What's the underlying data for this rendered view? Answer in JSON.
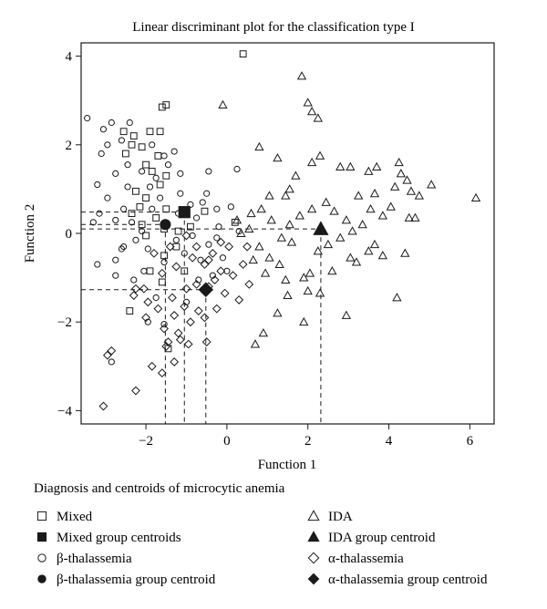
{
  "chart_data": {
    "type": "scatter",
    "title": "Linear discriminant plot for the classification type I",
    "xlabel": "Function 1",
    "ylabel": "Function 2",
    "xlim": [
      -3.6,
      6.6
    ],
    "ylim": [
      -4.3,
      4.3
    ],
    "xticks": [
      -2,
      0,
      2,
      4,
      6
    ],
    "yticks": [
      -4,
      -2,
      0,
      2,
      4
    ],
    "xtick_labels": [
      "−2",
      "0",
      "2",
      "4",
      "6"
    ],
    "ytick_labels": [
      "−4",
      "−2",
      "0",
      "2",
      "4"
    ],
    "grid": false,
    "legend": {
      "title": "Diagnosis and centroids of microcytic anemia",
      "placement": "below",
      "entries": [
        {
          "marker": "square-open",
          "label": "Mixed"
        },
        {
          "marker": "triangle-open",
          "label": "IDA"
        },
        {
          "marker": "square-filled",
          "label": "Mixed group centroids"
        },
        {
          "marker": "triangle-filled",
          "label": "IDA group centroid"
        },
        {
          "marker": "circle-open",
          "label": "β-thalassemia"
        },
        {
          "marker": "diamond-open",
          "label": "α-thalassemia"
        },
        {
          "marker": "circle-filled",
          "label": "β-thalassemia group centroid"
        },
        {
          "marker": "diamond-filled",
          "label": "α-thalassemia group centroid"
        }
      ]
    },
    "series": [
      {
        "name": "Mixed",
        "marker": "square-open",
        "points": [
          [
            0.4,
            4.05
          ],
          [
            -1.9,
            2.3
          ],
          [
            -1.65,
            2.3
          ],
          [
            -2.3,
            2.2
          ],
          [
            -2.35,
            2.0
          ],
          [
            -2.1,
            1.95
          ],
          [
            -2.5,
            1.8
          ],
          [
            -1.7,
            1.75
          ],
          [
            -2.0,
            1.55
          ],
          [
            -1.85,
            1.4
          ],
          [
            -1.5,
            1.3
          ],
          [
            -1.65,
            1.1
          ],
          [
            -2.25,
            0.95
          ],
          [
            -2.0,
            0.8
          ],
          [
            -2.15,
            0.6
          ],
          [
            -1.5,
            0.55
          ],
          [
            -2.35,
            0.45
          ],
          [
            -1.75,
            0.35
          ],
          [
            -2.1,
            0.2
          ],
          [
            -1.55,
            0.1
          ],
          [
            -1.2,
            0.05
          ],
          [
            -2.0,
            -0.05
          ],
          [
            0.2,
            0.25
          ],
          [
            -1.25,
            -0.3
          ],
          [
            -1.55,
            -0.5
          ],
          [
            -2.4,
            -1.75
          ],
          [
            -1.9,
            -0.85
          ],
          [
            -1.05,
            -0.85
          ],
          [
            -1.6,
            -1.1
          ],
          [
            -1.45,
            -2.6
          ],
          [
            -1.6,
            2.85
          ],
          [
            -1.5,
            2.9
          ],
          [
            -0.55,
            0.5
          ],
          [
            -0.9,
            0.15
          ],
          [
            -2.55,
            2.3
          ]
        ]
      },
      {
        "name": "IDA",
        "marker": "triangle-open",
        "points": [
          [
            1.85,
            3.55
          ],
          [
            2.0,
            2.95
          ],
          [
            2.1,
            2.75
          ],
          [
            2.25,
            2.6
          ],
          [
            -0.1,
            2.9
          ],
          [
            0.8,
            1.95
          ],
          [
            1.7,
            1.3
          ],
          [
            2.1,
            1.6
          ],
          [
            2.3,
            1.75
          ],
          [
            1.25,
            1.7
          ],
          [
            2.8,
            1.5
          ],
          [
            3.05,
            1.5
          ],
          [
            3.5,
            1.4
          ],
          [
            3.7,
            1.5
          ],
          [
            4.25,
            1.6
          ],
          [
            4.45,
            1.2
          ],
          [
            4.3,
            1.35
          ],
          [
            5.05,
            1.1
          ],
          [
            4.75,
            0.85
          ],
          [
            4.55,
            0.95
          ],
          [
            4.15,
            1.05
          ],
          [
            3.65,
            0.9
          ],
          [
            3.25,
            0.85
          ],
          [
            6.15,
            0.8
          ],
          [
            4.05,
            0.6
          ],
          [
            3.85,
            0.4
          ],
          [
            4.5,
            0.35
          ],
          [
            4.65,
            0.35
          ],
          [
            1.55,
            1.0
          ],
          [
            1.45,
            0.85
          ],
          [
            1.05,
            0.85
          ],
          [
            0.85,
            0.55
          ],
          [
            0.6,
            0.45
          ],
          [
            0.55,
            0.1
          ],
          [
            0.25,
            0.3
          ],
          [
            0.35,
            0.0
          ],
          [
            0.8,
            -0.3
          ],
          [
            1.05,
            -0.55
          ],
          [
            1.3,
            -0.7
          ],
          [
            0.95,
            -0.9
          ],
          [
            1.45,
            -1.05
          ],
          [
            1.5,
            -1.4
          ],
          [
            1.25,
            -1.8
          ],
          [
            2.05,
            -0.9
          ],
          [
            2.25,
            -0.4
          ],
          [
            2.5,
            -0.25
          ],
          [
            2.8,
            -0.1
          ],
          [
            3.05,
            -0.55
          ],
          [
            3.2,
            -0.65
          ],
          [
            3.5,
            -0.4
          ],
          [
            3.65,
            -0.25
          ],
          [
            3.85,
            -0.5
          ],
          [
            4.4,
            -0.45
          ],
          [
            4.2,
            -1.45
          ],
          [
            2.3,
            -1.35
          ],
          [
            2.0,
            -1.3
          ],
          [
            2.95,
            -1.85
          ],
          [
            1.9,
            -1.0
          ],
          [
            1.55,
            0.2
          ],
          [
            1.8,
            0.4
          ],
          [
            2.1,
            0.55
          ],
          [
            2.45,
            0.7
          ],
          [
            2.65,
            0.5
          ],
          [
            2.95,
            0.3
          ],
          [
            3.1,
            0.05
          ],
          [
            3.35,
            0.2
          ],
          [
            3.55,
            0.55
          ],
          [
            1.6,
            -0.2
          ],
          [
            1.35,
            -0.1
          ],
          [
            1.1,
            0.3
          ],
          [
            0.7,
            -2.5
          ],
          [
            0.9,
            -2.25
          ],
          [
            1.9,
            -2.0
          ],
          [
            0.65,
            -0.6
          ],
          [
            2.6,
            -0.85
          ]
        ]
      },
      {
        "name": "β-thalassemia",
        "marker": "circle-open",
        "points": [
          [
            -3.45,
            2.6
          ],
          [
            -3.05,
            2.35
          ],
          [
            -2.85,
            2.5
          ],
          [
            -2.6,
            2.1
          ],
          [
            -2.95,
            2.0
          ],
          [
            -3.1,
            1.8
          ],
          [
            -2.4,
            2.5
          ],
          [
            -1.85,
            2.0
          ],
          [
            -1.55,
            1.75
          ],
          [
            -1.3,
            1.85
          ],
          [
            -1.45,
            1.55
          ],
          [
            -1.15,
            1.35
          ],
          [
            -1.75,
            1.25
          ],
          [
            -2.45,
            1.55
          ],
          [
            -2.75,
            1.35
          ],
          [
            -3.2,
            1.1
          ],
          [
            -2.95,
            0.8
          ],
          [
            -3.15,
            0.45
          ],
          [
            -2.75,
            0.3
          ],
          [
            -2.55,
            0.55
          ],
          [
            -2.35,
            0.25
          ],
          [
            -2.25,
            -0.15
          ],
          [
            -2.55,
            -0.3
          ],
          [
            -2.75,
            -0.6
          ],
          [
            -3.2,
            -0.7
          ],
          [
            -1.15,
            0.9
          ],
          [
            -0.9,
            0.65
          ],
          [
            -0.75,
            0.35
          ],
          [
            -0.45,
            1.4
          ],
          [
            -0.5,
            0.9
          ],
          [
            -0.25,
            0.55
          ],
          [
            0.25,
            1.45
          ],
          [
            0.1,
            0.6
          ],
          [
            -1.95,
            -0.35
          ],
          [
            -1.55,
            -0.65
          ],
          [
            -1.25,
            -0.15
          ],
          [
            -1.05,
            -0.45
          ],
          [
            -0.85,
            -0.05
          ],
          [
            -0.65,
            -0.6
          ],
          [
            -0.45,
            -0.25
          ],
          [
            -0.25,
            -0.1
          ],
          [
            -0.1,
            -0.55
          ],
          [
            -1.65,
            0.8
          ],
          [
            -1.85,
            0.55
          ],
          [
            -2.1,
            0.05
          ],
          [
            -2.45,
            1.05
          ],
          [
            -2.75,
            -0.95
          ],
          [
            -2.85,
            -2.9
          ],
          [
            -1.75,
            -1.45
          ],
          [
            -1.95,
            -2.0
          ],
          [
            -1.0,
            -1.55
          ],
          [
            -0.7,
            -1.05
          ],
          [
            -0.35,
            -0.95
          ],
          [
            0.0,
            -0.85
          ],
          [
            -1.55,
            -2.05
          ],
          [
            -2.3,
            -1.05
          ],
          [
            -2.6,
            -0.35
          ],
          [
            -0.6,
            0.7
          ],
          [
            -1.9,
            1.05
          ],
          [
            -1.2,
            0.45
          ],
          [
            -2.1,
            1.4
          ],
          [
            -3.3,
            0.25
          ],
          [
            -2.05,
            -0.85
          ],
          [
            -0.2,
            0.15
          ],
          [
            0.3,
            0.05
          ]
        ]
      },
      {
        "name": "α-thalassemia",
        "marker": "diamond-open",
        "points": [
          [
            -3.05,
            -3.9
          ],
          [
            -2.25,
            -3.55
          ],
          [
            -1.6,
            -3.15
          ],
          [
            -2.95,
            -2.75
          ],
          [
            -2.85,
            -2.65
          ],
          [
            -1.3,
            -2.9
          ],
          [
            -1.45,
            -2.45
          ],
          [
            -1.2,
            -2.25
          ],
          [
            -0.95,
            -2.5
          ],
          [
            -0.5,
            -2.45
          ],
          [
            -1.55,
            -2.15
          ],
          [
            -1.7,
            -1.7
          ],
          [
            -1.3,
            -1.85
          ],
          [
            -1.05,
            -1.65
          ],
          [
            -0.7,
            -1.75
          ],
          [
            -0.55,
            -1.9
          ],
          [
            -0.25,
            -1.7
          ],
          [
            -1.35,
            -1.45
          ],
          [
            -1.0,
            -1.25
          ],
          [
            -0.75,
            -1.15
          ],
          [
            -0.45,
            -1.2
          ],
          [
            -0.05,
            -1.35
          ],
          [
            0.3,
            -1.5
          ],
          [
            0.55,
            -1.15
          ],
          [
            -2.05,
            -1.25
          ],
          [
            -1.6,
            -0.9
          ],
          [
            -1.25,
            -0.75
          ],
          [
            -0.85,
            -0.55
          ],
          [
            -0.55,
            -0.7
          ],
          [
            -0.15,
            -0.85
          ],
          [
            0.15,
            -0.95
          ],
          [
            0.4,
            -0.7
          ],
          [
            -1.95,
            -1.55
          ],
          [
            -2.25,
            -1.25
          ],
          [
            -0.3,
            -1.05
          ],
          [
            -1.8,
            -0.45
          ],
          [
            -1.4,
            -0.3
          ],
          [
            -1.0,
            -0.05
          ],
          [
            -0.75,
            -0.3
          ],
          [
            -0.35,
            -0.45
          ],
          [
            0.05,
            -0.3
          ],
          [
            -2.3,
            -1.4
          ],
          [
            -1.15,
            -2.4
          ],
          [
            -0.9,
            -2.0
          ],
          [
            -0.15,
            -0.2
          ],
          [
            -1.85,
            -3.0
          ],
          [
            -0.45,
            -0.6
          ],
          [
            -2.0,
            -1.9
          ],
          [
            -1.5,
            -2.55
          ],
          [
            0.5,
            -0.3
          ]
        ]
      }
    ],
    "centroids": [
      {
        "name": "Mixed group centroids",
        "marker": "square-filled",
        "x": -1.05,
        "y": 0.48
      },
      {
        "name": "β-thalassemia group centroid",
        "marker": "circle-filled",
        "x": -1.52,
        "y": 0.2
      },
      {
        "name": "α-thalassemia group centroid",
        "marker": "diamond-filled",
        "x": -0.52,
        "y": -1.27
      },
      {
        "name": "IDA group centroid",
        "marker": "triangle-filled",
        "x": 2.32,
        "y": 0.1
      }
    ],
    "reference_lines": "dashed lines from each group centroid to both axes"
  }
}
